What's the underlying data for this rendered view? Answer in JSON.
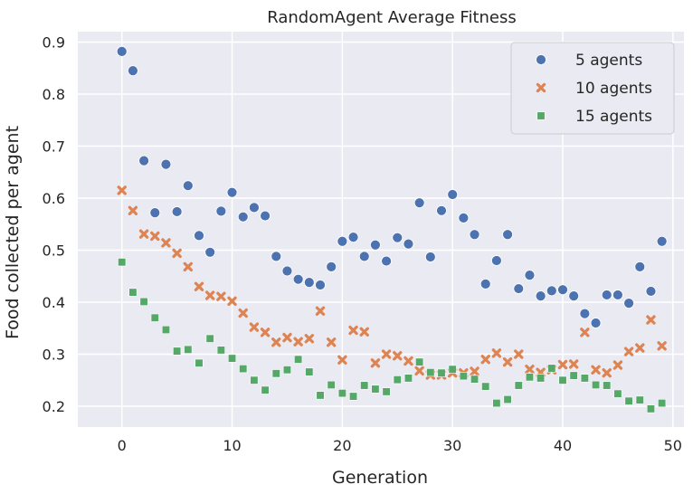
{
  "chart_data": {
    "type": "scatter",
    "title": "RandomAgent Average Fitness",
    "xlabel": "Generation",
    "ylabel": "Food collected per agent",
    "xlim": [
      -4,
      51
    ],
    "ylim": [
      0.16,
      0.92
    ],
    "xticks": [
      0,
      10,
      20,
      30,
      40,
      50
    ],
    "yticks": [
      0.2,
      0.3,
      0.4,
      0.5,
      0.6,
      0.7,
      0.8,
      0.9
    ],
    "xtick_labels": [
      "0",
      "10",
      "20",
      "30",
      "40",
      "50"
    ],
    "ytick_labels": [
      "0.2",
      "0.3",
      "0.4",
      "0.5",
      "0.6",
      "0.7",
      "0.8",
      "0.9"
    ],
    "grid": true,
    "legend_position": "top-right",
    "background": "#eaeaf2",
    "x": [
      0,
      1,
      2,
      3,
      4,
      5,
      6,
      7,
      8,
      9,
      10,
      11,
      12,
      13,
      14,
      15,
      16,
      17,
      18,
      19,
      20,
      21,
      22,
      23,
      24,
      25,
      26,
      27,
      28,
      29,
      30,
      31,
      32,
      33,
      34,
      35,
      36,
      37,
      38,
      39,
      40,
      41,
      42,
      43,
      44,
      45,
      46,
      47,
      48,
      49
    ],
    "series": [
      {
        "name": "5 agents",
        "marker": "circle",
        "color": "#4c72b0",
        "values": [
          0.882,
          0.845,
          0.672,
          0.572,
          0.665,
          0.574,
          0.624,
          0.528,
          0.496,
          0.575,
          0.611,
          0.564,
          0.582,
          0.566,
          0.488,
          0.46,
          0.444,
          0.438,
          0.433,
          0.468,
          0.517,
          0.525,
          0.488,
          0.51,
          0.479,
          0.524,
          0.512,
          0.591,
          0.487,
          0.576,
          0.607,
          0.562,
          0.53,
          0.435,
          0.48,
          0.53,
          0.426,
          0.452,
          0.412,
          0.422,
          0.424,
          0.412,
          0.378,
          0.36,
          0.414,
          0.414,
          0.398,
          0.468,
          0.421,
          0.517
        ]
      },
      {
        "name": "10 agents",
        "marker": "x",
        "color": "#dd8452",
        "values": [
          0.615,
          0.576,
          0.531,
          0.527,
          0.514,
          0.494,
          0.468,
          0.43,
          0.413,
          0.411,
          0.402,
          0.379,
          0.352,
          0.342,
          0.323,
          0.332,
          0.324,
          0.33,
          0.383,
          0.323,
          0.289,
          0.346,
          0.343,
          0.283,
          0.3,
          0.297,
          0.287,
          0.268,
          0.26,
          0.26,
          0.264,
          0.264,
          0.267,
          0.29,
          0.302,
          0.285,
          0.3,
          0.271,
          0.265,
          0.27,
          0.28,
          0.281,
          0.342,
          0.27,
          0.264,
          0.279,
          0.305,
          0.312,
          0.366,
          0.316
        ]
      },
      {
        "name": "15 agents",
        "marker": "square",
        "color": "#55a868",
        "values": [
          0.477,
          0.419,
          0.401,
          0.37,
          0.347,
          0.306,
          0.309,
          0.283,
          0.33,
          0.308,
          0.292,
          0.272,
          0.25,
          0.231,
          0.263,
          0.27,
          0.29,
          0.266,
          0.221,
          0.241,
          0.225,
          0.219,
          0.24,
          0.233,
          0.228,
          0.251,
          0.254,
          0.285,
          0.265,
          0.264,
          0.271,
          0.258,
          0.252,
          0.238,
          0.206,
          0.213,
          0.24,
          0.256,
          0.254,
          0.273,
          0.25,
          0.259,
          0.254,
          0.241,
          0.24,
          0.224,
          0.21,
          0.212,
          0.195,
          0.206
        ]
      }
    ]
  }
}
